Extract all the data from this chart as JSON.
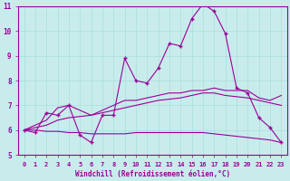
{
  "xlabel": "Windchill (Refroidissement éolien,°C)",
  "bg_color": "#c8ecec",
  "line_color": "#990099",
  "grid_color": "#aadddd",
  "axis_color": "#660066",
  "xmin": 0,
  "xmax": 23,
  "ymin": 5,
  "ymax": 11,
  "x": [
    0,
    1,
    2,
    3,
    4,
    5,
    6,
    7,
    8,
    9,
    10,
    11,
    12,
    13,
    14,
    15,
    16,
    17,
    18,
    19,
    20,
    21,
    22,
    23
  ],
  "values1": [
    6.0,
    5.9,
    6.7,
    6.6,
    7.0,
    5.8,
    5.5,
    6.6,
    6.6,
    8.9,
    8.0,
    7.9,
    8.5,
    9.5,
    9.4,
    10.5,
    11.1,
    10.8,
    9.9,
    7.7,
    7.5,
    6.5,
    6.1,
    5.5
  ],
  "reg1": [
    6.0,
    6.2,
    6.4,
    6.9,
    7.0,
    6.8,
    6.6,
    6.8,
    7.0,
    7.2,
    7.2,
    7.3,
    7.4,
    7.5,
    7.5,
    7.6,
    7.6,
    7.7,
    7.6,
    7.6,
    7.6,
    7.3,
    7.2,
    7.4
  ],
  "reg2": [
    6.0,
    6.1,
    6.2,
    6.4,
    6.5,
    6.55,
    6.6,
    6.7,
    6.8,
    6.9,
    7.0,
    7.1,
    7.2,
    7.25,
    7.3,
    7.4,
    7.5,
    7.5,
    7.4,
    7.35,
    7.3,
    7.2,
    7.1,
    7.0
  ],
  "reg3": [
    6.0,
    6.0,
    5.95,
    5.95,
    5.9,
    5.9,
    5.85,
    5.85,
    5.85,
    5.85,
    5.9,
    5.9,
    5.9,
    5.9,
    5.9,
    5.9,
    5.9,
    5.85,
    5.8,
    5.75,
    5.7,
    5.65,
    5.6,
    5.5
  ]
}
